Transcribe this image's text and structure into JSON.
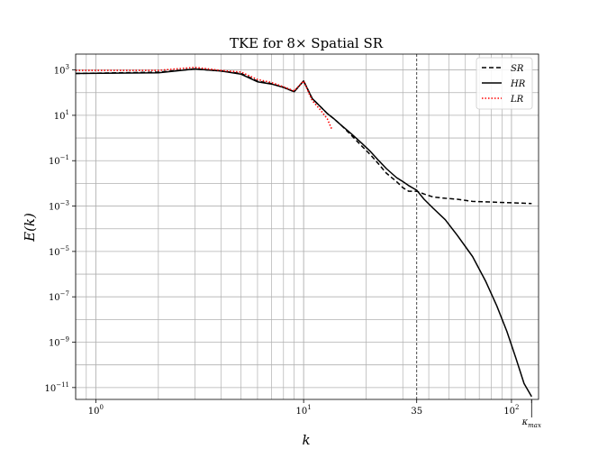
{
  "chart_data": {
    "type": "line",
    "title": "TKE for 8×  Spatial SR",
    "xlabel": "k",
    "ylabel": "E(k)",
    "xscale": "log",
    "yscale": "log",
    "xlim": [
      0.8,
      135
    ],
    "ylim": [
      3e-12,
      5000
    ],
    "grid": true,
    "legend": {
      "position": "top-right"
    },
    "x_tick_labels": [
      {
        "x": 1,
        "label": "10",
        "sup": "0"
      },
      {
        "x": 10,
        "label": "10",
        "sup": "1"
      },
      {
        "x": 35,
        "label": "35",
        "sup": ""
      },
      {
        "x": 100,
        "label": "10",
        "sup": "2"
      },
      {
        "x": 125,
        "label": "κ",
        "sup": "",
        "sub": "max"
      }
    ],
    "y_tick_labels": [
      {
        "y": 1000.0,
        "label": "10",
        "sup": "3"
      },
      {
        "y": 10.0,
        "label": "10",
        "sup": "1"
      },
      {
        "y": 0.1,
        "label": "10",
        "sup": "−1"
      },
      {
        "y": 0.001,
        "label": "10",
        "sup": "−3"
      },
      {
        "y": 1e-05,
        "label": "10",
        "sup": "−5"
      },
      {
        "y": 1e-07,
        "label": "10",
        "sup": "−7"
      },
      {
        "y": 1e-09,
        "label": "10",
        "sup": "−9"
      },
      {
        "y": 1e-11,
        "label": "10",
        "sup": "−11"
      }
    ],
    "vlines": [
      {
        "x": 35,
        "style": "dashed"
      },
      {
        "x": 125,
        "style": "solid-short"
      }
    ],
    "series": [
      {
        "name": "SR",
        "style": "dashed",
        "color": "#000000",
        "points": [
          [
            0.8,
            700
          ],
          [
            2,
            800
          ],
          [
            3,
            1100
          ],
          [
            4,
            900
          ],
          [
            5,
            700
          ],
          [
            6,
            320
          ],
          [
            7,
            250
          ],
          [
            8,
            170
          ],
          [
            9,
            110
          ],
          [
            10,
            330
          ],
          [
            11,
            55
          ],
          [
            12,
            25
          ],
          [
            13,
            12
          ],
          [
            14,
            7
          ],
          [
            15,
            4
          ],
          [
            17,
            1.3
          ],
          [
            19,
            0.45
          ],
          [
            21,
            0.18
          ],
          [
            23,
            0.07
          ],
          [
            25,
            0.028
          ],
          [
            28,
            0.012
          ],
          [
            30,
            0.0065
          ],
          [
            32,
            0.0045
          ],
          [
            35,
            0.0045
          ],
          [
            38,
            0.0034
          ],
          [
            42,
            0.0025
          ],
          [
            48,
            0.0022
          ],
          [
            55,
            0.002
          ],
          [
            65,
            0.0016
          ],
          [
            80,
            0.0015
          ],
          [
            100,
            0.0014
          ],
          [
            125,
            0.0013
          ]
        ]
      },
      {
        "name": "HR",
        "style": "solid",
        "color": "#000000",
        "points": [
          [
            0.8,
            700
          ],
          [
            2,
            750
          ],
          [
            3,
            1100
          ],
          [
            4,
            900
          ],
          [
            5,
            650
          ],
          [
            6,
            300
          ],
          [
            7,
            240
          ],
          [
            8,
            170
          ],
          [
            9,
            110
          ],
          [
            10,
            330
          ],
          [
            11,
            55
          ],
          [
            12,
            25
          ],
          [
            13,
            12
          ],
          [
            14,
            7
          ],
          [
            15,
            4
          ],
          [
            17,
            1.5
          ],
          [
            19,
            0.6
          ],
          [
            21,
            0.25
          ],
          [
            23,
            0.1
          ],
          [
            25,
            0.045
          ],
          [
            28,
            0.018
          ],
          [
            30,
            0.012
          ],
          [
            32,
            0.008
          ],
          [
            35,
            0.005
          ],
          [
            38,
            0.002
          ],
          [
            42,
            0.0008
          ],
          [
            48,
            0.00025
          ],
          [
            55,
            5e-05
          ],
          [
            65,
            6e-06
          ],
          [
            75,
            5e-07
          ],
          [
            85,
            4e-08
          ],
          [
            95,
            3e-09
          ],
          [
            105,
            2e-10
          ],
          [
            115,
            1.5e-11
          ],
          [
            125,
            4e-12
          ]
        ]
      },
      {
        "name": "LR",
        "style": "dotted",
        "color": "#ff0000",
        "points": [
          [
            0.8,
            950
          ],
          [
            2,
            950
          ],
          [
            3,
            1300
          ],
          [
            4,
            950
          ],
          [
            5,
            800
          ],
          [
            6,
            380
          ],
          [
            7,
            280
          ],
          [
            8,
            180
          ],
          [
            9,
            120
          ],
          [
            10,
            320
          ],
          [
            11,
            45
          ],
          [
            12,
            18
          ],
          [
            13,
            7
          ],
          [
            13.7,
            2.3
          ]
        ]
      }
    ]
  }
}
